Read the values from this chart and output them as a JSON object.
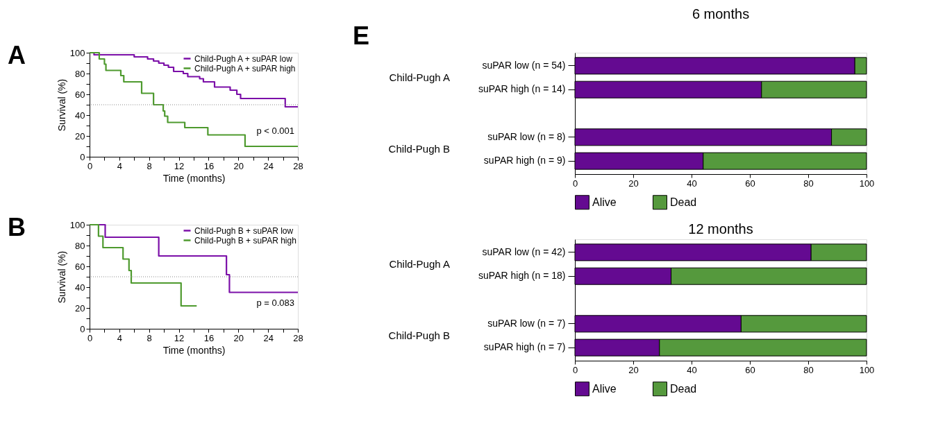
{
  "chart_data": [
    {
      "type": "step",
      "title": "A",
      "xlabel": "Time (months)",
      "ylabel": "Survival (%)",
      "xlim": [
        0,
        28
      ],
      "ylim": [
        0,
        100
      ],
      "xticks": [
        0,
        {
          "value": 2,
          "label": null
        },
        4,
        {
          "value": 6,
          "label": null
        },
        8,
        {
          "value": 10,
          "label": null
        },
        12,
        {
          "value": 14,
          "label": null
        },
        16,
        {
          "value": 18,
          "label": null
        },
        20,
        {
          "value": 22,
          "label": null
        },
        24,
        {
          "value": 26,
          "label": null
        },
        28
      ],
      "yticks": [
        0,
        {
          "value": 10,
          "label": null
        },
        20,
        {
          "value": 30,
          "label": null
        },
        40,
        {
          "value": 50,
          "label": null
        },
        60,
        {
          "value": 70,
          "label": null
        },
        80,
        {
          "value": 90,
          "label": null
        },
        100
      ],
      "series": [
        {
          "name": "Child-Pugh A + suPAR low",
          "color": "#7b0fa8",
          "x": [
            0,
            0.6,
            6.0,
            7.8,
            8.6,
            9.3,
            10.0,
            10.6,
            11.3,
            12.6,
            13.2,
            14.8,
            15.3,
            16.8,
            18.9,
            19.8,
            20.3,
            26.3,
            28
          ],
          "values": [
            100,
            98,
            96,
            94,
            92,
            90,
            88,
            86,
            82,
            80,
            77,
            75,
            72,
            67,
            64,
            60,
            56,
            48,
            48
          ]
        },
        {
          "name": "Child-Pugh A + suPAR high",
          "color": "#4e9a2e",
          "x": [
            0,
            1.3,
            2.0,
            2.2,
            4.2,
            4.6,
            7.0,
            8.6,
            9.9,
            10.1,
            10.5,
            12.8,
            15.9,
            20.9,
            28
          ],
          "values": [
            100,
            94,
            89,
            83,
            78,
            72,
            61,
            50,
            44,
            39,
            33,
            28,
            21,
            10,
            10
          ]
        }
      ],
      "ref_lines": [
        {
          "axis": "y",
          "value": 50,
          "label": null,
          "color": "#888888",
          "line_style": "dotted"
        }
      ],
      "annotations": [
        "p < 0.001"
      ],
      "legend": "top right",
      "grid": false
    },
    {
      "type": "step",
      "title": "B",
      "xlabel": "Time (months)",
      "ylabel": "Survival (%)",
      "xlim": [
        0,
        28
      ],
      "ylim": [
        0,
        100
      ],
      "xticks": [
        0,
        {
          "value": 2,
          "label": null
        },
        4,
        {
          "value": 6,
          "label": null
        },
        8,
        {
          "value": 10,
          "label": null
        },
        12,
        {
          "value": 14,
          "label": null
        },
        16,
        {
          "value": 18,
          "label": null
        },
        20,
        {
          "value": 22,
          "label": null
        },
        24,
        {
          "value": 26,
          "label": null
        },
        28
      ],
      "yticks": [
        0,
        {
          "value": 10,
          "label": null
        },
        20,
        {
          "value": 30,
          "label": null
        },
        40,
        {
          "value": 50,
          "label": null
        },
        60,
        {
          "value": 70,
          "label": null
        },
        80,
        {
          "value": 90,
          "label": null
        },
        100
      ],
      "series": [
        {
          "name": "Child-Pugh B + suPAR low",
          "color": "#7b0fa8",
          "x": [
            0,
            2.1,
            9.3,
            18.4,
            18.8,
            28
          ],
          "values": [
            100,
            88,
            70,
            52,
            35,
            35
          ]
        },
        {
          "name": "Child-Pugh B + suPAR high",
          "color": "#4e9a2e",
          "x": [
            0,
            1.2,
            1.8,
            4.5,
            5.3,
            5.6,
            12.3,
            14.4
          ],
          "values": [
            100,
            89,
            78,
            67,
            56,
            44,
            22,
            22
          ]
        }
      ],
      "ref_lines": [
        {
          "axis": "y",
          "value": 50,
          "label": null,
          "color": "#888888",
          "line_style": "dotted"
        }
      ],
      "annotations": [
        "p = 0.083"
      ],
      "legend": "top right",
      "grid": false
    },
    {
      "type": "bar",
      "orientation": "horizontal",
      "stacked": true,
      "title": "6 months",
      "xlim": [
        0,
        100
      ],
      "xticks": [
        0,
        20,
        40,
        60,
        80,
        100
      ],
      "categories": [
        "suPAR low (n = 54)",
        "suPAR high (n = 14)",
        null,
        "suPAR low (n = 8)",
        "suPAR high (n = 9)"
      ],
      "series": [
        {
          "name": "Alive",
          "color": "#640a91",
          "values": [
            96,
            64,
            null,
            88,
            44
          ]
        },
        {
          "name": "Dead",
          "color": "#55993d",
          "values": [
            4,
            36,
            null,
            12,
            56
          ]
        }
      ],
      "annotations": [
        "E",
        "Child-Pugh A",
        "Child-Pugh B"
      ],
      "legend": "bottom",
      "grid": false
    },
    {
      "type": "bar",
      "orientation": "horizontal",
      "stacked": true,
      "title": "12 months",
      "xlim": [
        0,
        100
      ],
      "xticks": [
        0,
        20,
        40,
        60,
        80,
        100
      ],
      "categories": [
        "suPAR low (n = 42)",
        "suPAR high (n = 18)",
        null,
        "suPAR low (n = 7)",
        "suPAR high (n = 7)"
      ],
      "series": [
        {
          "name": "Alive",
          "color": "#640a91",
          "values": [
            81,
            33,
            null,
            57,
            29
          ]
        },
        {
          "name": "Dead",
          "color": "#55993d",
          "values": [
            19,
            67,
            null,
            43,
            71
          ]
        }
      ],
      "annotations": [
        "Child-Pugh A",
        "Child-Pugh B"
      ],
      "legend": "bottom",
      "grid": false
    }
  ]
}
